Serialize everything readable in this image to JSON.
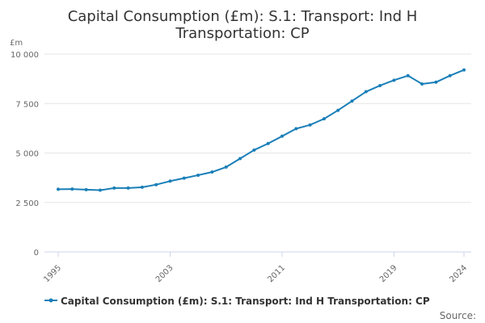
{
  "chart_data": {
    "type": "line",
    "title_lines": [
      "Capital Consumption (£m): S.1: Transport: Ind H",
      "Transportation: CP"
    ],
    "ylabel": "£m",
    "xlabel": "",
    "x": [
      1995,
      1996,
      1997,
      1998,
      1999,
      2000,
      2001,
      2002,
      2003,
      2004,
      2005,
      2006,
      2007,
      2008,
      2009,
      2010,
      2011,
      2012,
      2013,
      2014,
      2015,
      2016,
      2017,
      2018,
      2019,
      2020,
      2021,
      2022,
      2023,
      2024
    ],
    "series": [
      {
        "name": "Capital Consumption (£m): S.1: Transport: Ind H Transportation: CP",
        "values": [
          3170,
          3180,
          3150,
          3120,
          3230,
          3230,
          3270,
          3400,
          3580,
          3730,
          3880,
          4040,
          4290,
          4720,
          5150,
          5480,
          5850,
          6230,
          6420,
          6730,
          7160,
          7630,
          8100,
          8410,
          8680,
          8910,
          8490,
          8580,
          8910,
          9200
        ]
      }
    ],
    "ylim": [
      0,
      10000
    ],
    "yticks": [
      0,
      2500,
      5000,
      7500,
      10000
    ],
    "ytick_labels": [
      "0",
      "2 500",
      "5 000",
      "7 500",
      "10 000"
    ],
    "xtick_labels": [
      "1995",
      "2003",
      "2011",
      "2019",
      "2024"
    ],
    "grid": true,
    "legend_position": "bottom",
    "source_label": "Source:",
    "colors": {
      "series": "#1a7fb8",
      "grid": "#e6e6e6",
      "axis": "#ccd6eb"
    }
  }
}
